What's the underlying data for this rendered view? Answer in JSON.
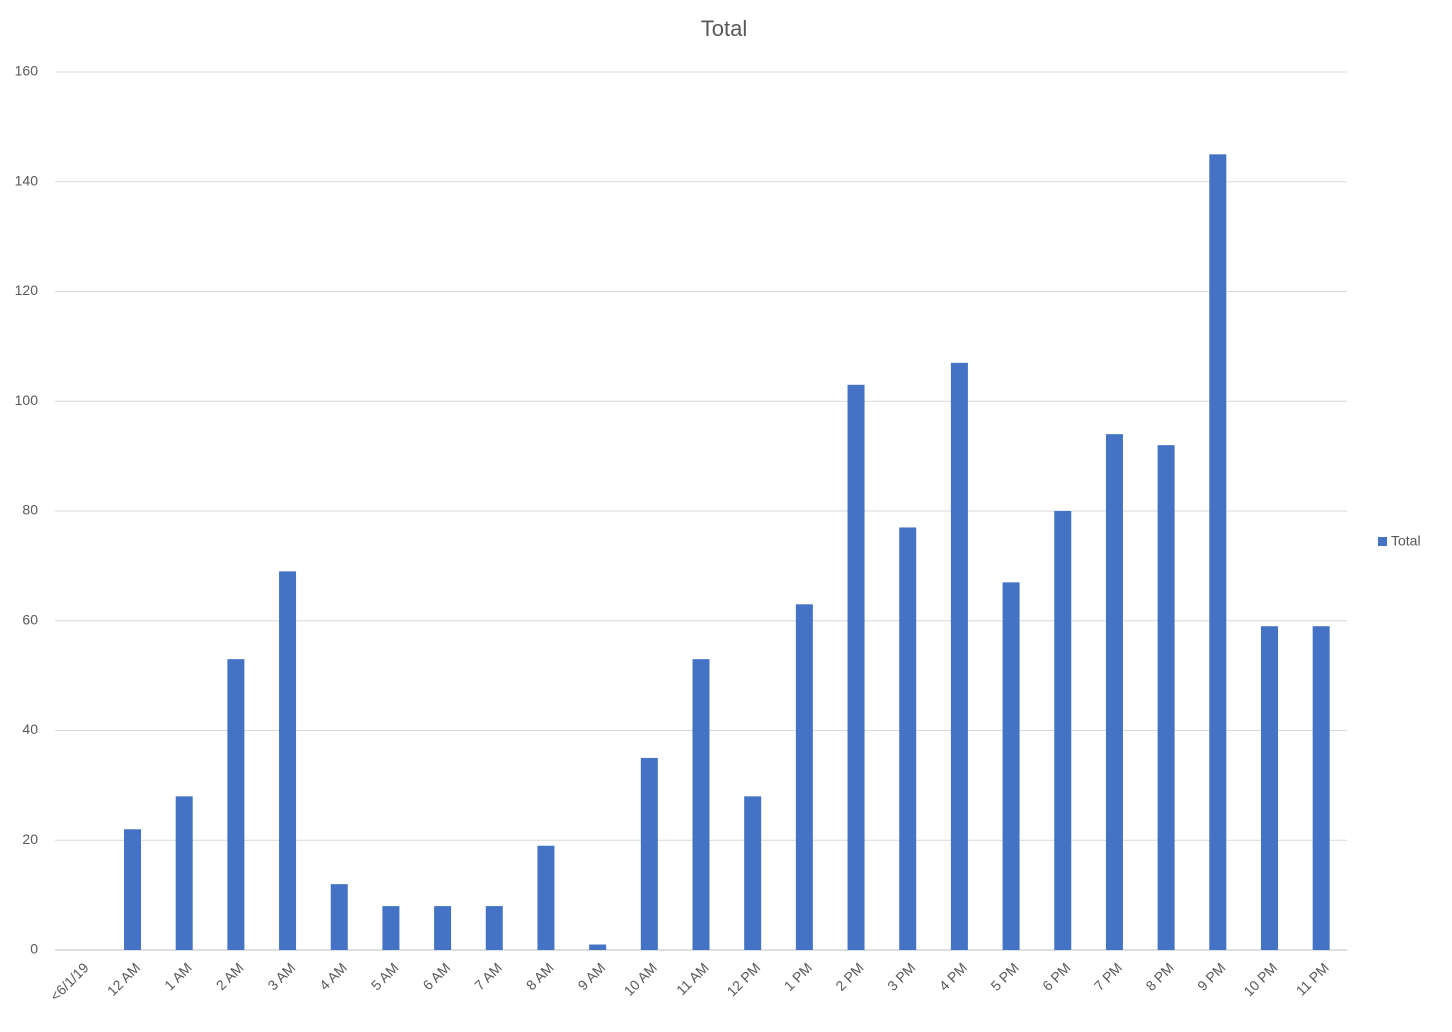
{
  "chart_data": {
    "type": "bar",
    "title": "Total",
    "categories": [
      "<6/1/19",
      "12 AM",
      "1 AM",
      "2 AM",
      "3 AM",
      "4 AM",
      "5 AM",
      "6 AM",
      "7 AM",
      "8 AM",
      "9 AM",
      "10 AM",
      "11 AM",
      "12 PM",
      "1 PM",
      "2 PM",
      "3 PM",
      "4 PM",
      "5 PM",
      "6 PM",
      "7 PM",
      "8 PM",
      "9 PM",
      "10 PM",
      "11 PM"
    ],
    "series": [
      {
        "name": "Total",
        "color": "#4472c4",
        "values": [
          null,
          22,
          28,
          53,
          69,
          12,
          8,
          8,
          8,
          19,
          1,
          35,
          53,
          28,
          63,
          103,
          77,
          107,
          67,
          80,
          94,
          92,
          145,
          59,
          59
        ]
      }
    ],
    "ylim": [
      0,
      160
    ],
    "yticks": [
      0,
      20,
      40,
      60,
      80,
      100,
      120,
      140,
      160
    ],
    "grid": true,
    "legend": "right"
  }
}
